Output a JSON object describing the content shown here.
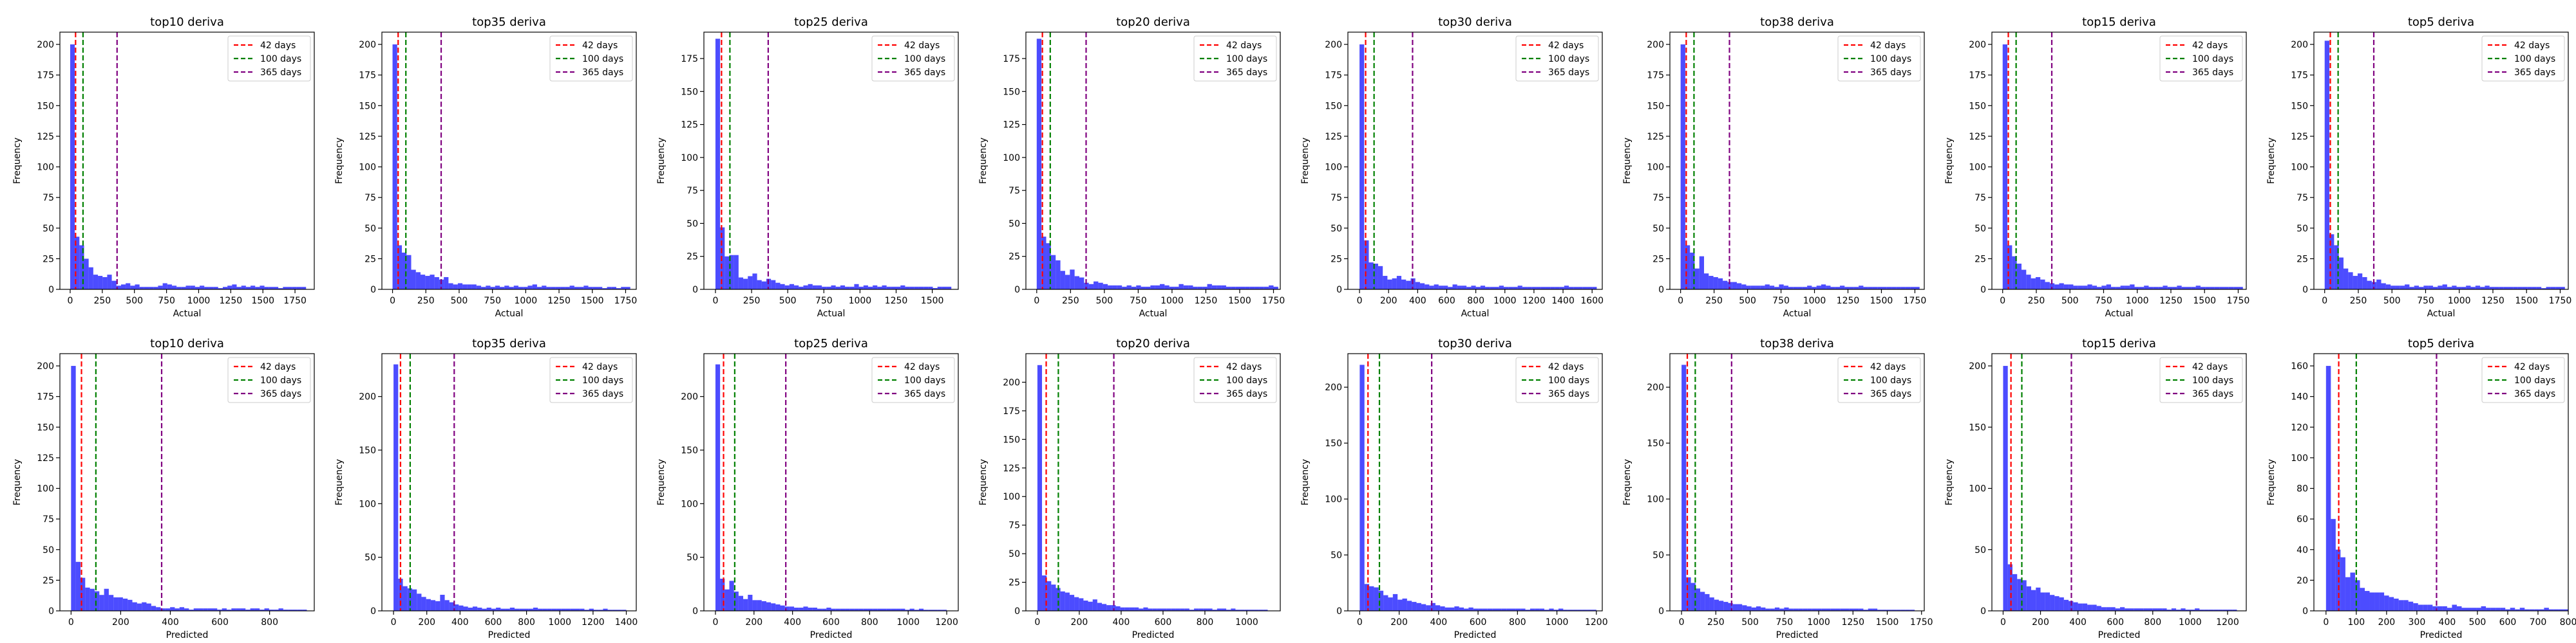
{
  "legend": {
    "entries": [
      {
        "label": "42 days",
        "value": 42,
        "color": "#ff0000"
      },
      {
        "label": "100 days",
        "value": 100,
        "color": "#008000"
      },
      {
        "label": "365 days",
        "value": 365,
        "color": "#800080"
      }
    ]
  },
  "chart_data": [
    {
      "type": "bar",
      "title": "top10 deriva",
      "xlabel": "Actual",
      "ylabel": "Frequency",
      "xlim": [
        -80,
        1900
      ],
      "ylim": [
        0,
        210
      ],
      "xticks": [
        0,
        250,
        500,
        750,
        1000,
        1250,
        1500,
        1750
      ],
      "yticks": [
        0,
        25,
        50,
        75,
        100,
        125,
        150,
        175,
        200
      ],
      "bin_width": 36,
      "x_start": 0,
      "values": [
        200,
        43,
        36,
        25,
        18,
        12,
        11,
        10,
        12,
        7,
        3,
        4,
        5,
        3,
        4,
        2,
        2,
        2,
        2,
        3,
        5,
        4,
        3,
        2,
        2,
        3,
        3,
        2,
        3,
        2,
        2,
        2,
        1,
        2,
        3,
        4,
        2,
        3,
        2,
        3,
        2,
        3,
        2,
        2,
        2,
        1,
        2,
        2,
        2,
        2,
        2
      ]
    },
    {
      "type": "bar",
      "title": "top35 deriva",
      "xlabel": "Actual",
      "ylabel": "Frequency",
      "xlim": [
        -80,
        1830
      ],
      "ylim": [
        0,
        210
      ],
      "xticks": [
        0,
        250,
        500,
        750,
        1000,
        1250,
        1500,
        1750
      ],
      "yticks": [
        0,
        25,
        50,
        75,
        100,
        125,
        150,
        175,
        200
      ],
      "bin_width": 35,
      "x_start": 0,
      "values": [
        200,
        36,
        30,
        28,
        16,
        14,
        12,
        11,
        12,
        10,
        8,
        10,
        5,
        4,
        5,
        4,
        4,
        4,
        3,
        2,
        3,
        2,
        3,
        2,
        3,
        2,
        3,
        2,
        2,
        3,
        4,
        2,
        3,
        2,
        2,
        2,
        2,
        2,
        3,
        2,
        2,
        3,
        2,
        2,
        2,
        1,
        2,
        2,
        1,
        2,
        2
      ]
    },
    {
      "type": "bar",
      "title": "top25 deriva",
      "xlabel": "Actual",
      "ylabel": "Frequency",
      "xlim": [
        -80,
        1680
      ],
      "ylim": [
        0,
        195
      ],
      "xticks": [
        0,
        250,
        500,
        750,
        1000,
        1250,
        1500
      ],
      "yticks": [
        0,
        25,
        50,
        75,
        100,
        125,
        150,
        175
      ],
      "bin_width": 32,
      "x_start": 0,
      "values": [
        190,
        47,
        25,
        26,
        26,
        9,
        8,
        10,
        12,
        7,
        6,
        8,
        7,
        5,
        4,
        3,
        4,
        3,
        2,
        3,
        4,
        3,
        3,
        2,
        2,
        3,
        2,
        3,
        2,
        2,
        4,
        2,
        3,
        2,
        3,
        2,
        3,
        2,
        2,
        2,
        3,
        2,
        2,
        2,
        2,
        2,
        2,
        1,
        2,
        2,
        2
      ]
    },
    {
      "type": "bar",
      "title": "top20 deriva",
      "xlabel": "Actual",
      "ylabel": "Frequency",
      "xlim": [
        -80,
        1800
      ],
      "ylim": [
        0,
        195
      ],
      "xticks": [
        0,
        250,
        500,
        750,
        1000,
        1250,
        1500,
        1750
      ],
      "yticks": [
        0,
        25,
        50,
        75,
        100,
        125,
        150,
        175
      ],
      "bin_width": 35,
      "x_start": 0,
      "values": [
        190,
        40,
        35,
        26,
        22,
        14,
        11,
        15,
        10,
        9,
        5,
        4,
        6,
        5,
        4,
        3,
        3,
        3,
        2,
        3,
        2,
        3,
        2,
        2,
        3,
        3,
        4,
        3,
        2,
        2,
        4,
        3,
        3,
        2,
        2,
        2,
        4,
        3,
        3,
        3,
        2,
        2,
        2,
        2,
        2,
        2,
        2,
        2,
        2,
        3,
        2
      ]
    },
    {
      "type": "bar",
      "title": "top30 deriva",
      "xlabel": "Actual",
      "ylabel": "Frequency",
      "xlim": [
        -80,
        1670
      ],
      "ylim": [
        0,
        210
      ],
      "xticks": [
        0,
        200,
        400,
        600,
        800,
        1000,
        1200,
        1400,
        1600
      ],
      "yticks": [
        0,
        25,
        50,
        75,
        100,
        125,
        150,
        175,
        200
      ],
      "bin_width": 32,
      "x_start": 0,
      "values": [
        200,
        40,
        22,
        21,
        19,
        11,
        8,
        9,
        11,
        8,
        7,
        9,
        6,
        5,
        4,
        3,
        4,
        3,
        3,
        2,
        4,
        3,
        3,
        2,
        3,
        2,
        3,
        2,
        2,
        2,
        3,
        2,
        2,
        2,
        3,
        2,
        2,
        2,
        2,
        2,
        2,
        2,
        2,
        2,
        3,
        2,
        2,
        2,
        2,
        2,
        2
      ]
    },
    {
      "type": "bar",
      "title": "top38 deriva",
      "xlabel": "Actual",
      "ylabel": "Frequency",
      "xlim": [
        -80,
        1820
      ],
      "ylim": [
        0,
        210
      ],
      "xticks": [
        0,
        250,
        500,
        750,
        1000,
        1250,
        1500,
        1750
      ],
      "yticks": [
        0,
        25,
        50,
        75,
        100,
        125,
        150,
        175,
        200
      ],
      "bin_width": 35,
      "x_start": 0,
      "values": [
        200,
        36,
        30,
        17,
        27,
        13,
        11,
        10,
        9,
        7,
        6,
        6,
        5,
        4,
        3,
        3,
        3,
        3,
        4,
        3,
        2,
        4,
        3,
        2,
        2,
        2,
        2,
        3,
        2,
        3,
        4,
        3,
        2,
        2,
        3,
        2,
        2,
        2,
        3,
        2,
        2,
        2,
        2,
        2,
        2,
        2,
        2,
        2,
        2,
        2,
        2
      ]
    },
    {
      "type": "bar",
      "title": "top15 deriva",
      "xlabel": "Actual",
      "ylabel": "Frequency",
      "xlim": [
        -80,
        1810
      ],
      "ylim": [
        0,
        210
      ],
      "xticks": [
        0,
        250,
        500,
        750,
        1000,
        1250,
        1500,
        1750
      ],
      "yticks": [
        0,
        25,
        50,
        75,
        100,
        125,
        150,
        175,
        200
      ],
      "bin_width": 35,
      "x_start": 0,
      "values": [
        200,
        36,
        27,
        21,
        16,
        12,
        9,
        10,
        8,
        6,
        5,
        4,
        5,
        4,
        4,
        3,
        3,
        3,
        4,
        3,
        2,
        3,
        4,
        2,
        2,
        3,
        3,
        4,
        2,
        2,
        3,
        2,
        2,
        2,
        3,
        2,
        2,
        3,
        2,
        2,
        2,
        3,
        2,
        2,
        2,
        2,
        2,
        2,
        2,
        2,
        2
      ]
    },
    {
      "type": "bar",
      "title": "top5 deriva",
      "xlabel": "Actual",
      "ylabel": "Frequency",
      "xlim": [
        -80,
        1810
      ],
      "ylim": [
        0,
        210
      ],
      "xticks": [
        0,
        250,
        500,
        750,
        1000,
        1250,
        1500,
        1750
      ],
      "yticks": [
        0,
        25,
        50,
        75,
        100,
        125,
        150,
        175,
        200
      ],
      "bin_width": 35,
      "x_start": 0,
      "values": [
        203,
        45,
        36,
        26,
        17,
        14,
        11,
        13,
        10,
        7,
        6,
        8,
        5,
        4,
        3,
        3,
        3,
        4,
        2,
        3,
        2,
        3,
        3,
        2,
        3,
        4,
        2,
        3,
        2,
        2,
        3,
        2,
        3,
        2,
        3,
        2,
        2,
        2,
        2,
        2,
        2,
        2,
        2,
        2,
        2,
        2,
        1,
        2,
        2,
        2,
        2
      ]
    },
    {
      "type": "bar",
      "title": "top10 deriva",
      "xlabel": "Predicted",
      "ylabel": "Frequency",
      "xlim": [
        -45,
        980
      ],
      "ylim": [
        0,
        210
      ],
      "xticks": [
        0,
        200,
        400,
        600,
        800
      ],
      "yticks": [
        0,
        25,
        50,
        75,
        100,
        125,
        150,
        175,
        200
      ],
      "bin_width": 19,
      "x_start": 0,
      "values": [
        200,
        40,
        27,
        19,
        18,
        16,
        13,
        18,
        13,
        11,
        11,
        10,
        9,
        7,
        6,
        7,
        6,
        4,
        3,
        2,
        2,
        3,
        2,
        3,
        2,
        1,
        2,
        2,
        2,
        2,
        2,
        1,
        2,
        1,
        2,
        2,
        2,
        1,
        2,
        2,
        1,
        2,
        1,
        1,
        2,
        1,
        1,
        1,
        1,
        1
      ]
    },
    {
      "type": "bar",
      "title": "top35 deriva",
      "xlabel": "Predicted",
      "ylabel": "Frequency",
      "xlim": [
        -70,
        1460
      ],
      "ylim": [
        0,
        240
      ],
      "xticks": [
        0,
        200,
        400,
        600,
        800,
        1000,
        1200,
        1400
      ],
      "yticks": [
        0,
        50,
        100,
        150,
        200
      ],
      "bin_width": 28,
      "x_start": 0,
      "values": [
        230,
        30,
        23,
        21,
        20,
        16,
        13,
        11,
        10,
        9,
        15,
        10,
        8,
        6,
        5,
        4,
        3,
        4,
        3,
        2,
        3,
        2,
        3,
        2,
        2,
        3,
        2,
        2,
        2,
        2,
        3,
        2,
        2,
        2,
        2,
        2,
        2,
        2,
        2,
        2,
        2,
        1,
        2,
        1,
        1,
        2,
        1,
        1,
        1,
        1
      ]
    },
    {
      "type": "bar",
      "title": "top25 deriva",
      "xlabel": "Predicted",
      "ylabel": "Frequency",
      "xlim": [
        -60,
        1260
      ],
      "ylim": [
        0,
        240
      ],
      "xticks": [
        0,
        200,
        400,
        600,
        800,
        1000,
        1200
      ],
      "yticks": [
        0,
        50,
        100,
        150,
        200
      ],
      "bin_width": 24,
      "x_start": 0,
      "values": [
        230,
        30,
        20,
        28,
        18,
        14,
        11,
        15,
        10,
        10,
        9,
        8,
        7,
        6,
        5,
        4,
        4,
        3,
        3,
        4,
        3,
        3,
        2,
        2,
        3,
        2,
        2,
        2,
        2,
        2,
        2,
        2,
        2,
        2,
        2,
        2,
        2,
        2,
        2,
        2,
        2,
        1,
        2,
        1,
        2,
        1,
        1,
        1,
        1,
        1
      ]
    },
    {
      "type": "bar",
      "title": "top20 deriva",
      "xlabel": "Predicted",
      "ylabel": "Frequency",
      "xlim": [
        -55,
        1160
      ],
      "ylim": [
        0,
        225
      ],
      "xticks": [
        0,
        200,
        400,
        600,
        800,
        1000
      ],
      "yticks": [
        0,
        25,
        50,
        75,
        100,
        125,
        150,
        175,
        200
      ],
      "bin_width": 22,
      "x_start": 0,
      "values": [
        215,
        31,
        26,
        23,
        20,
        17,
        16,
        14,
        12,
        11,
        9,
        8,
        10,
        7,
        6,
        5,
        5,
        4,
        3,
        3,
        3,
        3,
        2,
        3,
        2,
        2,
        2,
        2,
        2,
        2,
        2,
        2,
        2,
        1,
        2,
        2,
        2,
        2,
        1,
        2,
        2,
        1,
        2,
        1,
        1,
        1,
        1,
        1,
        1,
        1
      ]
    },
    {
      "type": "bar",
      "title": "top30 deriva",
      "xlabel": "Predicted",
      "ylabel": "Frequency",
      "xlim": [
        -60,
        1230
      ],
      "ylim": [
        0,
        230
      ],
      "xticks": [
        0,
        200,
        400,
        600,
        800,
        1000,
        1200
      ],
      "yticks": [
        0,
        50,
        100,
        150,
        200
      ],
      "bin_width": 24,
      "x_start": 0,
      "values": [
        220,
        24,
        22,
        21,
        18,
        14,
        12,
        15,
        10,
        11,
        9,
        8,
        7,
        6,
        5,
        7,
        5,
        4,
        3,
        3,
        4,
        3,
        2,
        3,
        2,
        2,
        2,
        2,
        2,
        2,
        2,
        2,
        2,
        2,
        2,
        1,
        2,
        2,
        2,
        1,
        2,
        1,
        2,
        1,
        1,
        1,
        1,
        1,
        1,
        1
      ]
    },
    {
      "type": "bar",
      "title": "top38 deriva",
      "xlabel": "Predicted",
      "ylabel": "Frequency",
      "xlim": [
        -85,
        1770
      ],
      "ylim": [
        0,
        230
      ],
      "xticks": [
        0,
        250,
        500,
        750,
        1000,
        1250,
        1500,
        1750
      ],
      "yticks": [
        0,
        50,
        100,
        150,
        200
      ],
      "bin_width": 34,
      "x_start": 0,
      "values": [
        220,
        30,
        25,
        20,
        17,
        15,
        12,
        10,
        9,
        8,
        7,
        6,
        6,
        5,
        4,
        3,
        4,
        3,
        2,
        2,
        3,
        2,
        3,
        2,
        2,
        2,
        2,
        2,
        2,
        2,
        2,
        2,
        2,
        2,
        2,
        2,
        2,
        2,
        2,
        1,
        2,
        2,
        1,
        1,
        1,
        1,
        1,
        1,
        1,
        1
      ]
    },
    {
      "type": "bar",
      "title": "top15 deriva",
      "xlabel": "Predicted",
      "ylabel": "Frequency",
      "xlim": [
        -60,
        1300
      ],
      "ylim": [
        0,
        210
      ],
      "xticks": [
        0,
        200,
        400,
        600,
        800,
        1000,
        1200
      ],
      "yticks": [
        0,
        50,
        100,
        150,
        200
      ],
      "bin_width": 25,
      "x_start": 0,
      "values": [
        200,
        38,
        30,
        26,
        25,
        20,
        17,
        19,
        15,
        15,
        13,
        12,
        11,
        9,
        8,
        7,
        6,
        6,
        5,
        5,
        4,
        3,
        3,
        3,
        2,
        3,
        2,
        2,
        2,
        2,
        2,
        2,
        2,
        2,
        2,
        1,
        2,
        1,
        2,
        1,
        1,
        2,
        1,
        1,
        1,
        1,
        1,
        1,
        1,
        1
      ]
    },
    {
      "type": "bar",
      "title": "top5 deriva",
      "xlabel": "Predicted",
      "ylabel": "Frequency",
      "xlim": [
        -40,
        800
      ],
      "ylim": [
        0,
        168
      ],
      "xticks": [
        0,
        100,
        200,
        300,
        400,
        500,
        600,
        700,
        800
      ],
      "yticks": [
        0,
        20,
        40,
        60,
        80,
        100,
        120,
        140,
        160
      ],
      "bin_width": 16,
      "x_start": 0,
      "values": [
        160,
        60,
        40,
        35,
        22,
        25,
        20,
        15,
        13,
        12,
        12,
        12,
        10,
        9,
        8,
        7,
        7,
        6,
        5,
        4,
        4,
        4,
        3,
        3,
        3,
        2,
        4,
        3,
        2,
        2,
        2,
        2,
        3,
        2,
        2,
        2,
        2,
        1,
        2,
        1,
        2,
        1,
        1,
        1,
        1,
        2,
        1,
        1,
        1,
        1
      ]
    }
  ]
}
